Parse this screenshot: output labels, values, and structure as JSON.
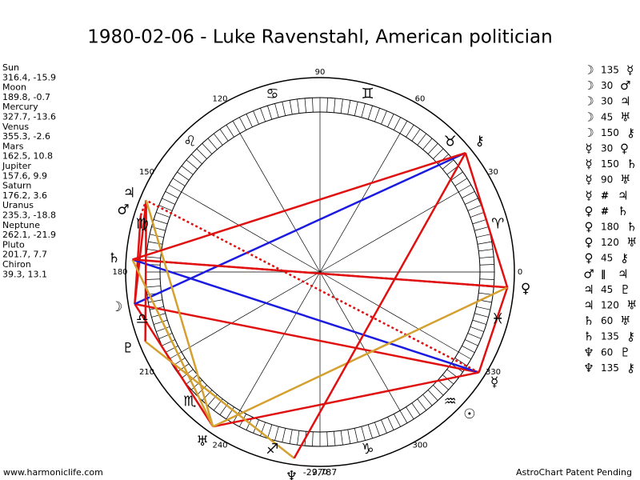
{
  "title": "1980-02-06 - Luke Ravenstahl, American politician",
  "planets": [
    {
      "name": "Sun",
      "glyph": "☉",
      "position": "316.4, -15.9"
    },
    {
      "name": "Moon",
      "glyph": "☽",
      "position": "189.8, -0.7"
    },
    {
      "name": "Mercury",
      "glyph": "☿",
      "position": "327.7, -13.6"
    },
    {
      "name": "Venus",
      "glyph": "♀",
      "position": "355.3, -2.6"
    },
    {
      "name": "Mars",
      "glyph": "♂",
      "position": "162.5, 10.8"
    },
    {
      "name": "Jupiter",
      "glyph": "♃",
      "position": "157.6, 9.9"
    },
    {
      "name": "Saturn",
      "glyph": "♄",
      "position": "176.2, 3.6"
    },
    {
      "name": "Uranus",
      "glyph": "♅",
      "position": "235.3, -18.8"
    },
    {
      "name": "Neptune",
      "glyph": "♆",
      "position": "262.1, -21.9"
    },
    {
      "name": "Pluto",
      "glyph": "♇",
      "position": "201.7, 7.7"
    },
    {
      "name": "Chiron",
      "glyph": "⚷",
      "position": "39.3, 13.1"
    }
  ],
  "aspects": [
    {
      "from": "☽",
      "aspect": "135",
      "to": "☿"
    },
    {
      "from": "☽",
      "aspect": "30",
      "to": "♂"
    },
    {
      "from": "☽",
      "aspect": "30",
      "to": "♃"
    },
    {
      "from": "☽",
      "aspect": "45",
      "to": "♅"
    },
    {
      "from": "☽",
      "aspect": "150",
      "to": "⚷"
    },
    {
      "from": "☿",
      "aspect": "30",
      "to": "♀"
    },
    {
      "from": "☿",
      "aspect": "150",
      "to": "♄"
    },
    {
      "from": "☿",
      "aspect": "90",
      "to": "♅"
    },
    {
      "from": "☿",
      "aspect": "#",
      "to": "♃"
    },
    {
      "from": "♀",
      "aspect": "#",
      "to": "♄"
    },
    {
      "from": "♀",
      "aspect": "180",
      "to": "♄"
    },
    {
      "from": "♀",
      "aspect": "120",
      "to": "♅"
    },
    {
      "from": "♀",
      "aspect": "45",
      "to": "⚷"
    },
    {
      "from": "♂",
      "aspect": "∥",
      "to": "♃"
    },
    {
      "from": "♃",
      "aspect": "45",
      "to": "♇"
    },
    {
      "from": "♃",
      "aspect": "120",
      "to": "♅"
    },
    {
      "from": "♄",
      "aspect": "60",
      "to": "♅"
    },
    {
      "from": "♄",
      "aspect": "135",
      "to": "⚷"
    },
    {
      "from": "♆",
      "aspect": "60",
      "to": "♇"
    },
    {
      "from": "♆",
      "aspect": "135",
      "to": "⚷"
    }
  ],
  "aspect_colors": {
    "30": "#e01010",
    "45": "#e01010",
    "90": "#e01010",
    "135": "#e01010",
    "180": "#e01010",
    "60": "#d4a030",
    "120": "#d4a030",
    "150": "#1a1ae0",
    "#": "#e01010",
    "∥": "#e01010"
  },
  "signs": [
    "♈",
    "♉",
    "♊",
    "♋",
    "♌",
    "♍",
    "♎",
    "♏",
    "♐",
    "♑",
    "♒",
    "♓"
  ],
  "degree_labels": [
    0,
    30,
    60,
    90,
    120,
    150,
    180,
    210,
    240,
    270,
    300,
    330
  ],
  "bottom_label": "-29,787",
  "footer": {
    "left": "www.harmoniclife.com",
    "right": "AstroChart Patent Pending"
  }
}
